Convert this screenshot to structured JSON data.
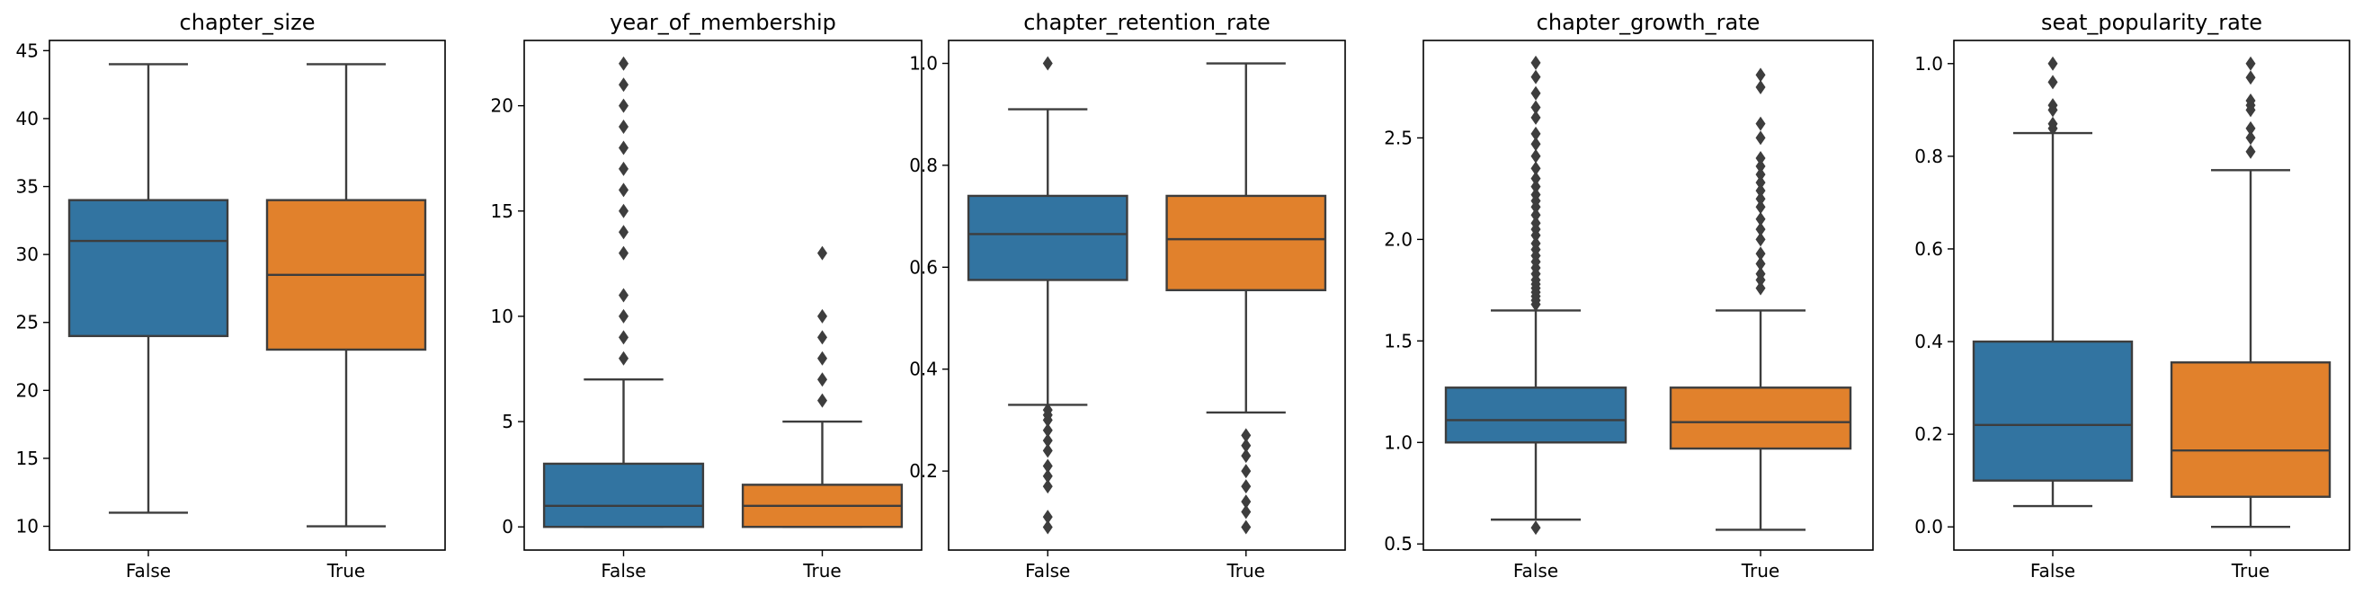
{
  "chart_data": [
    {
      "type": "box",
      "title": "chapter_size",
      "xlabel": "",
      "ylabel": "",
      "ylim": [
        8.25,
        45.75
      ],
      "yticks": [
        10,
        15,
        20,
        25,
        30,
        35,
        40,
        45
      ],
      "categories": [
        "False",
        "True"
      ],
      "boxes": [
        {
          "category": "False",
          "color": "#3274a1",
          "whisker_low": 11,
          "q1": 24,
          "median": 31,
          "q3": 34,
          "whisker_high": 44,
          "outliers": []
        },
        {
          "category": "True",
          "color": "#e1812c",
          "whisker_low": 10,
          "q1": 23,
          "median": 28.5,
          "q3": 34,
          "whisker_high": 44,
          "outliers": []
        }
      ]
    },
    {
      "type": "box",
      "title": "year_of_membership",
      "xlabel": "",
      "ylabel": "",
      "ylim": [
        -1.1,
        23.1
      ],
      "yticks": [
        0,
        5,
        10,
        15,
        20
      ],
      "categories": [
        "False",
        "True"
      ],
      "boxes": [
        {
          "category": "False",
          "color": "#3274a1",
          "whisker_low": 0,
          "q1": 0,
          "median": 1,
          "q3": 3,
          "whisker_high": 7,
          "outliers": [
            8,
            9,
            10,
            11,
            13,
            14,
            15,
            16,
            17,
            18,
            19,
            20,
            21,
            22
          ]
        },
        {
          "category": "True",
          "color": "#e1812c",
          "whisker_low": 0,
          "q1": 0,
          "median": 1,
          "q3": 2,
          "whisker_high": 5,
          "outliers": [
            6,
            7,
            8,
            9,
            10,
            13
          ]
        }
      ]
    },
    {
      "type": "box",
      "title": "chapter_retention_rate",
      "xlabel": "",
      "ylabel": "",
      "ylim": [
        0.045,
        1.045
      ],
      "yticks": [
        0.2,
        0.4,
        0.6,
        0.8,
        1.0
      ],
      "ytick_labels": [
        "0.2",
        "0.4",
        "0.6",
        "0.8",
        "1.0"
      ],
      "categories": [
        "False",
        "True"
      ],
      "boxes": [
        {
          "category": "False",
          "color": "#3274a1",
          "whisker_low": 0.33,
          "q1": 0.575,
          "median": 0.665,
          "q3": 0.74,
          "whisker_high": 0.91,
          "outliers": [
            1.0,
            0.32,
            0.31,
            0.3,
            0.28,
            0.26,
            0.24,
            0.21,
            0.19,
            0.17,
            0.11,
            0.09
          ]
        },
        {
          "category": "True",
          "color": "#e1812c",
          "whisker_low": 0.315,
          "q1": 0.555,
          "median": 0.655,
          "q3": 0.74,
          "whisker_high": 1.0,
          "outliers": [
            0.27,
            0.25,
            0.23,
            0.2,
            0.17,
            0.14,
            0.12,
            0.09
          ]
        }
      ]
    },
    {
      "type": "box",
      "title": "chapter_growth_rate",
      "xlabel": "",
      "ylabel": "",
      "ylim": [
        0.47,
        2.98
      ],
      "yticks": [
        0.5,
        1.0,
        1.5,
        2.0,
        2.5
      ],
      "ytick_labels": [
        "0.5",
        "1.0",
        "1.5",
        "2.0",
        "2.5"
      ],
      "categories": [
        "False",
        "True"
      ],
      "boxes": [
        {
          "category": "False",
          "color": "#3274a1",
          "whisker_low": 0.62,
          "q1": 1.0,
          "median": 1.11,
          "q3": 1.27,
          "whisker_high": 1.65,
          "outliers": [
            0.58,
            1.68,
            1.7,
            1.72,
            1.74,
            1.76,
            1.78,
            1.8,
            1.83,
            1.86,
            1.89,
            1.92,
            1.95,
            1.98,
            2.02,
            2.05,
            2.08,
            2.12,
            2.16,
            2.19,
            2.22,
            2.26,
            2.3,
            2.35,
            2.41,
            2.47,
            2.52,
            2.6,
            2.65,
            2.72,
            2.8,
            2.87
          ]
        },
        {
          "category": "True",
          "color": "#e1812c",
          "whisker_low": 0.57,
          "q1": 0.97,
          "median": 1.1,
          "q3": 1.27,
          "whisker_high": 1.65,
          "outliers": [
            1.76,
            1.8,
            1.83,
            1.88,
            1.93,
            2.0,
            2.05,
            2.1,
            2.16,
            2.2,
            2.24,
            2.28,
            2.32,
            2.36,
            2.4,
            2.5,
            2.57,
            2.75,
            2.81
          ]
        }
      ]
    },
    {
      "type": "box",
      "title": "seat_popularity_rate",
      "xlabel": "",
      "ylabel": "",
      "ylim": [
        -0.05,
        1.05
      ],
      "yticks": [
        0.0,
        0.2,
        0.4,
        0.6,
        0.8,
        1.0
      ],
      "ytick_labels": [
        "0.0",
        "0.2",
        "0.4",
        "0.6",
        "0.8",
        "1.0"
      ],
      "categories": [
        "False",
        "True"
      ],
      "boxes": [
        {
          "category": "False",
          "color": "#3274a1",
          "whisker_low": 0.045,
          "q1": 0.1,
          "median": 0.22,
          "q3": 0.4,
          "whisker_high": 0.85,
          "outliers": [
            0.86,
            0.87,
            0.9,
            0.91,
            0.96,
            1.0
          ]
        },
        {
          "category": "True",
          "color": "#e1812c",
          "whisker_low": 0.0,
          "q1": 0.065,
          "median": 0.165,
          "q3": 0.355,
          "whisker_high": 0.77,
          "outliers": [
            0.81,
            0.84,
            0.86,
            0.9,
            0.91,
            0.92,
            0.97,
            1.0
          ]
        }
      ]
    }
  ]
}
